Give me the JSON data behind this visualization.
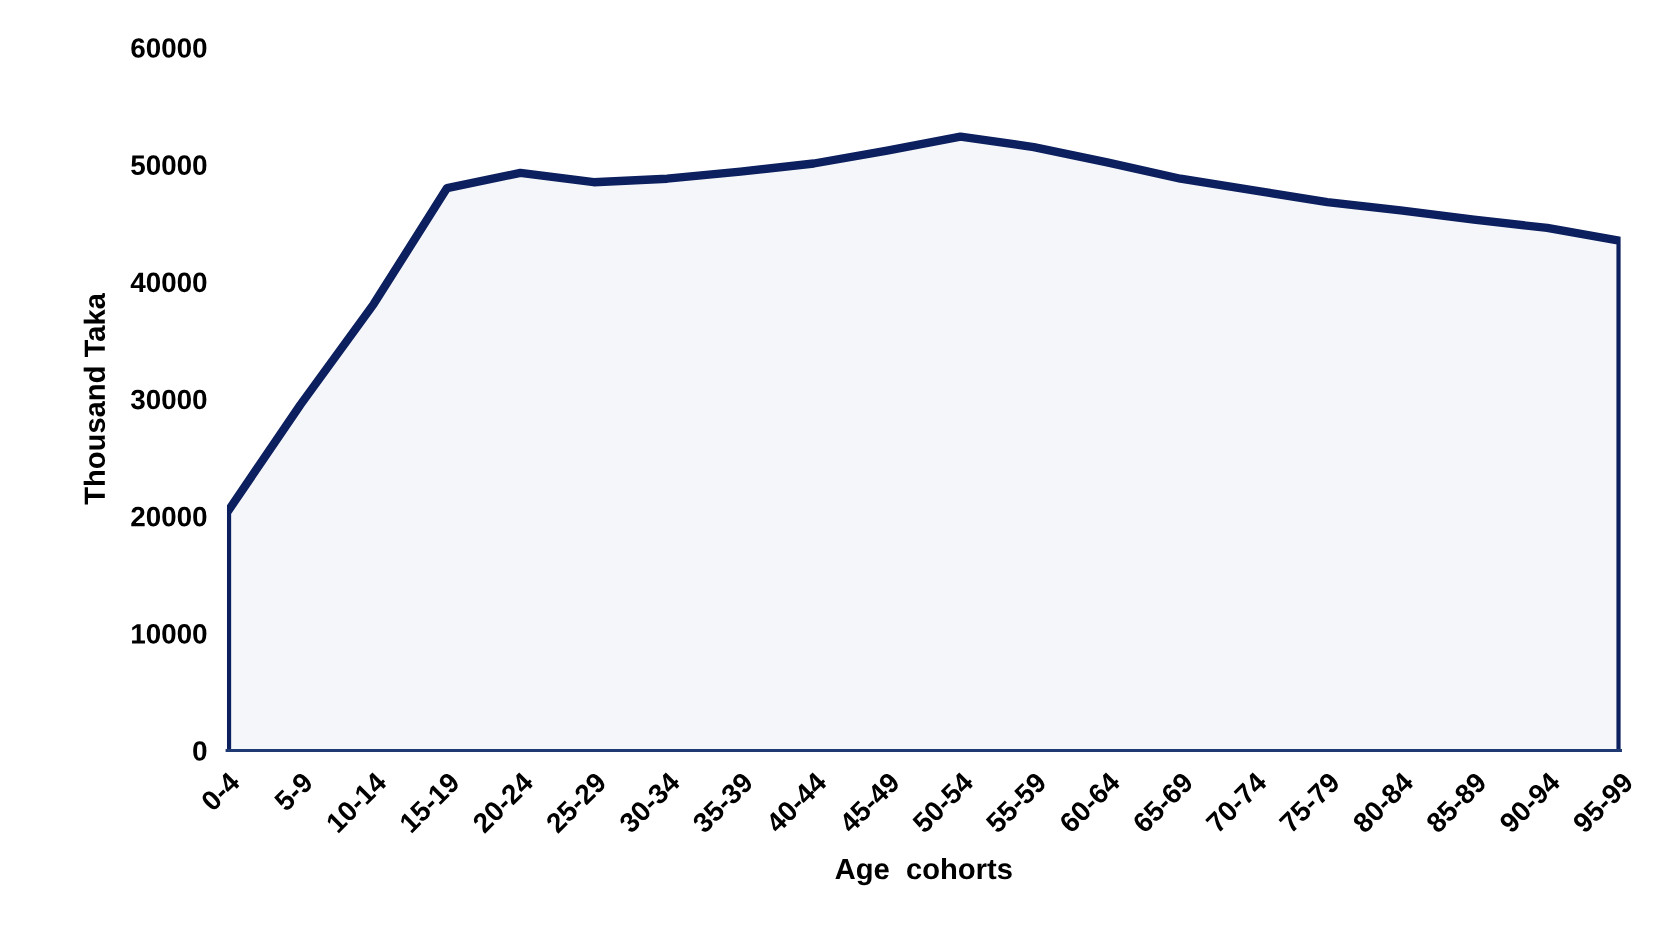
{
  "chart_data": {
    "type": "area",
    "xlabel": "Age  cohorts",
    "ylabel": "Thousand Taka",
    "categories": [
      "0-4",
      "5-9",
      "10-14",
      "15-19",
      "20-24",
      "25-29",
      "30-34",
      "35-39",
      "40-44",
      "45-49",
      "50-54",
      "55-59",
      "60-64",
      "65-69",
      "70-74",
      "75-79",
      "80-84",
      "85-89",
      "90-94",
      "95-99"
    ],
    "series": [
      {
        "color": "#0c1f5e",
        "values": [
          20300,
          29500,
          38100,
          48000,
          49300,
          48500,
          48800,
          49400,
          50100,
          51200,
          52400,
          51500,
          50200,
          48800,
          47800,
          46800,
          46100,
          45300,
          44600,
          43500
        ]
      }
    ],
    "ylim": [
      0,
      60000
    ],
    "yticks": [
      0,
      10000,
      20000,
      30000,
      40000,
      50000,
      60000
    ],
    "grid": false,
    "legend": false
  }
}
